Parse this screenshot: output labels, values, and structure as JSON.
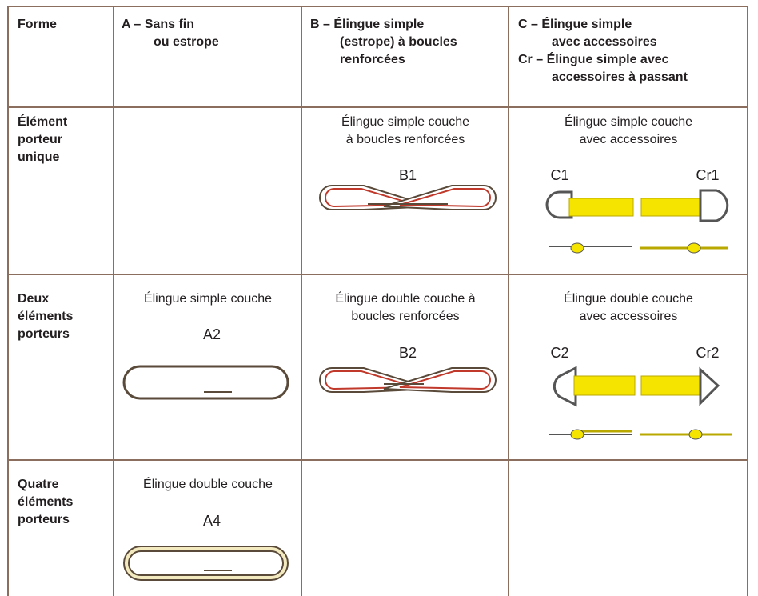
{
  "table": {
    "header": [
      [
        "Forme"
      ],
      [
        "A – Sans fin",
        "ou estrope"
      ],
      [
        "B – Élingue simple",
        "(estrope) à boucles",
        "renforcées"
      ],
      [
        "C – Élingue simple",
        "avec accessoires",
        "Cr – Élingue simple avec",
        "accessoires à passant"
      ]
    ],
    "rows": [
      {
        "forme": [
          "Élément",
          "porteur",
          "unique"
        ],
        "b": {
          "caption": [
            "Élingue simple couche",
            "à boucles renforcées"
          ],
          "labels": [
            "B1"
          ]
        },
        "c": {
          "caption": [
            "Élingue simple couche",
            "avec accessoires"
          ],
          "labels": [
            "C1",
            "Cr1"
          ]
        }
      },
      {
        "forme": [
          "Deux",
          "éléments",
          "porteurs"
        ],
        "a": {
          "caption": [
            "Élingue simple couche"
          ],
          "labels": [
            "A2"
          ]
        },
        "b": {
          "caption": [
            "Élingue double couche à",
            "boucles renforcées"
          ],
          "labels": [
            "B2"
          ]
        },
        "c": {
          "caption": [
            "Élingue double couche",
            "avec accessoires"
          ],
          "labels": [
            "C2",
            "Cr2"
          ]
        }
      },
      {
        "forme": [
          "Quatre",
          "éléments",
          "porteurs"
        ],
        "a": {
          "caption": [
            "Élingue double couche"
          ],
          "labels": [
            "A4"
          ]
        }
      }
    ]
  }
}
